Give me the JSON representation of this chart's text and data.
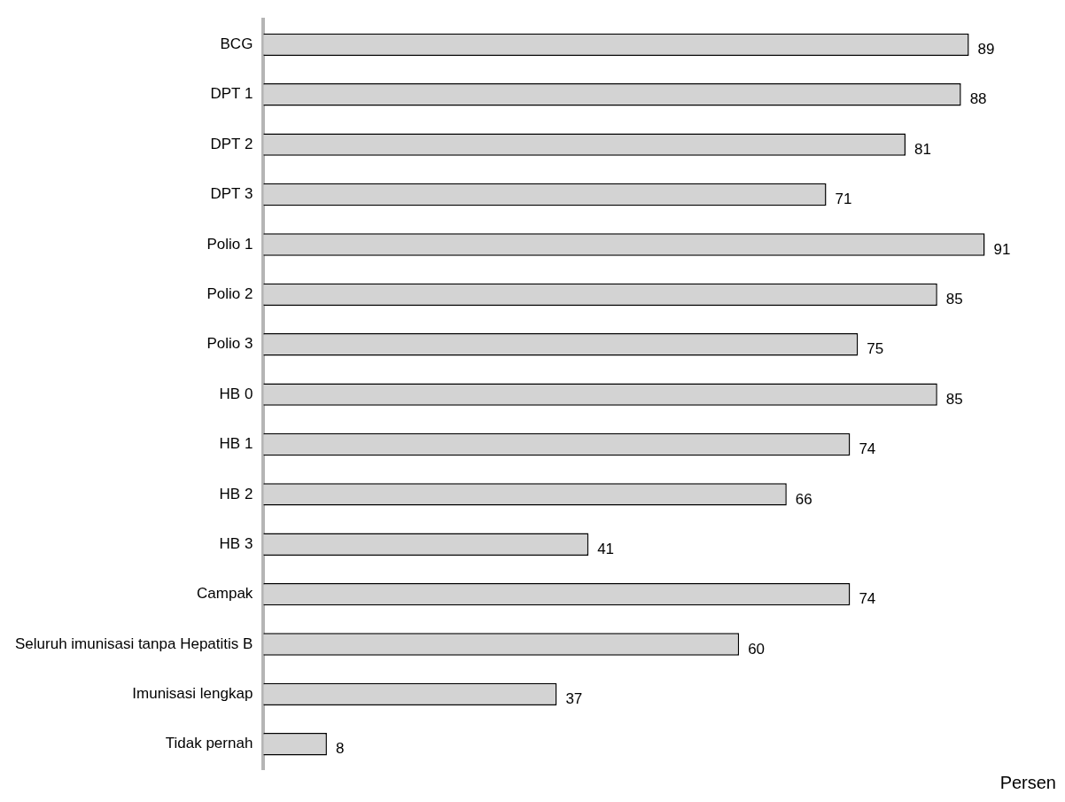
{
  "chart_data": {
    "type": "bar",
    "orientation": "horizontal",
    "xlabel": "Persen",
    "categories": [
      "BCG",
      "DPT 1",
      "DPT 2",
      "DPT 3",
      "Polio 1",
      "Polio 2",
      "Polio 3",
      "HB 0",
      "HB 1",
      "HB 2",
      "HB 3",
      "Campak",
      "Seluruh imunisasi tanpa Hepatitis B",
      "Imunisasi lengkap",
      "Tidak pernah"
    ],
    "values": [
      89,
      88,
      81,
      71,
      91,
      85,
      75,
      85,
      74,
      66,
      41,
      74,
      60,
      37,
      8
    ],
    "color": "#d3d3d3",
    "data_labels": true,
    "grid": false,
    "legend": false
  }
}
